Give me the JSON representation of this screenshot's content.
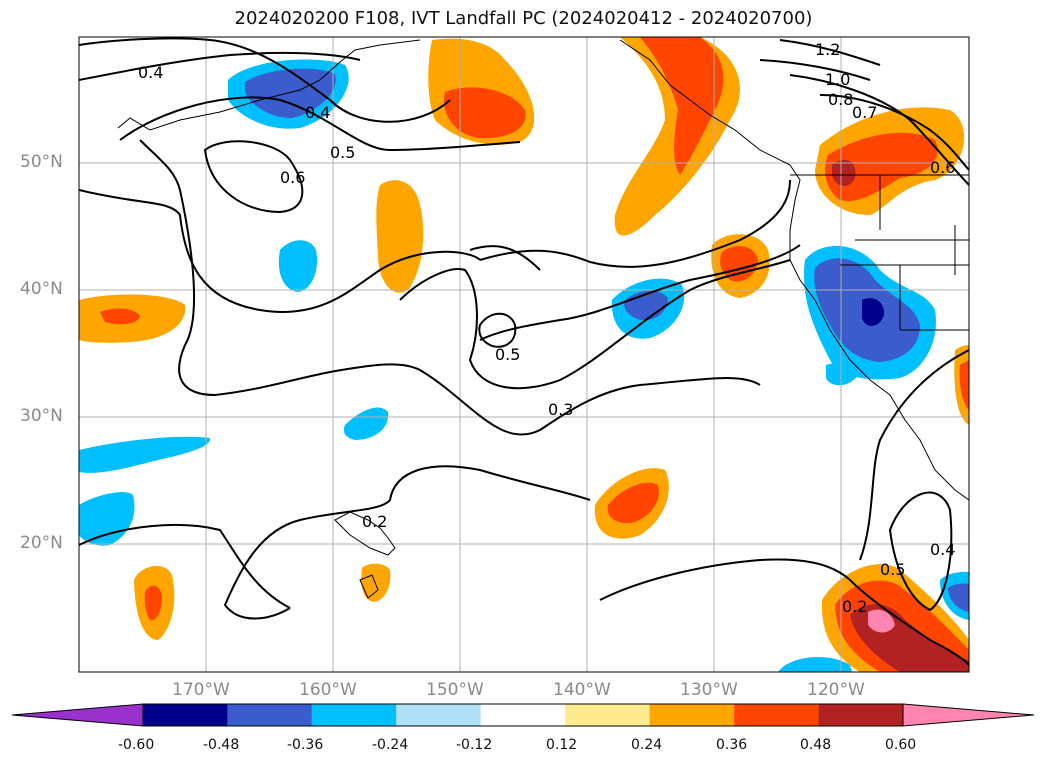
{
  "title": "2024020200 F108, IVT Landfall PC (2024020412 - 2024020700)",
  "lat_labels": [
    "50°N",
    "40°N",
    "30°N",
    "20°N"
  ],
  "lon_labels": [
    "170°W",
    "160°W",
    "150°W",
    "140°W",
    "130°W",
    "120°W"
  ],
  "contour_labels": [
    "0.4",
    "0.4",
    "0.5",
    "0.6",
    "0.5",
    "0.3",
    "1.2",
    "1.0",
    "0.8",
    "0.7",
    "0.6",
    "0.5",
    "0.4",
    "0.2",
    "0.2"
  ],
  "colorbar": {
    "colors": [
      "#9932cc",
      "#00008b",
      "#3a5ccc",
      "#00bfff",
      "#b0e0f8",
      "#ffffff",
      "#ffeb8f",
      "#ffa500",
      "#ff4500",
      "#b22222",
      "#ff85b0"
    ],
    "tick_labels": [
      "-0.60",
      "-0.48",
      "-0.36",
      "-0.24",
      "-0.12",
      "0.12",
      "0.24",
      "0.36",
      "0.48",
      "0.60"
    ]
  },
  "colors": {
    "axis_label": "#8a8a8a",
    "contour": "#000000",
    "grid": "#b0b0b0"
  }
}
